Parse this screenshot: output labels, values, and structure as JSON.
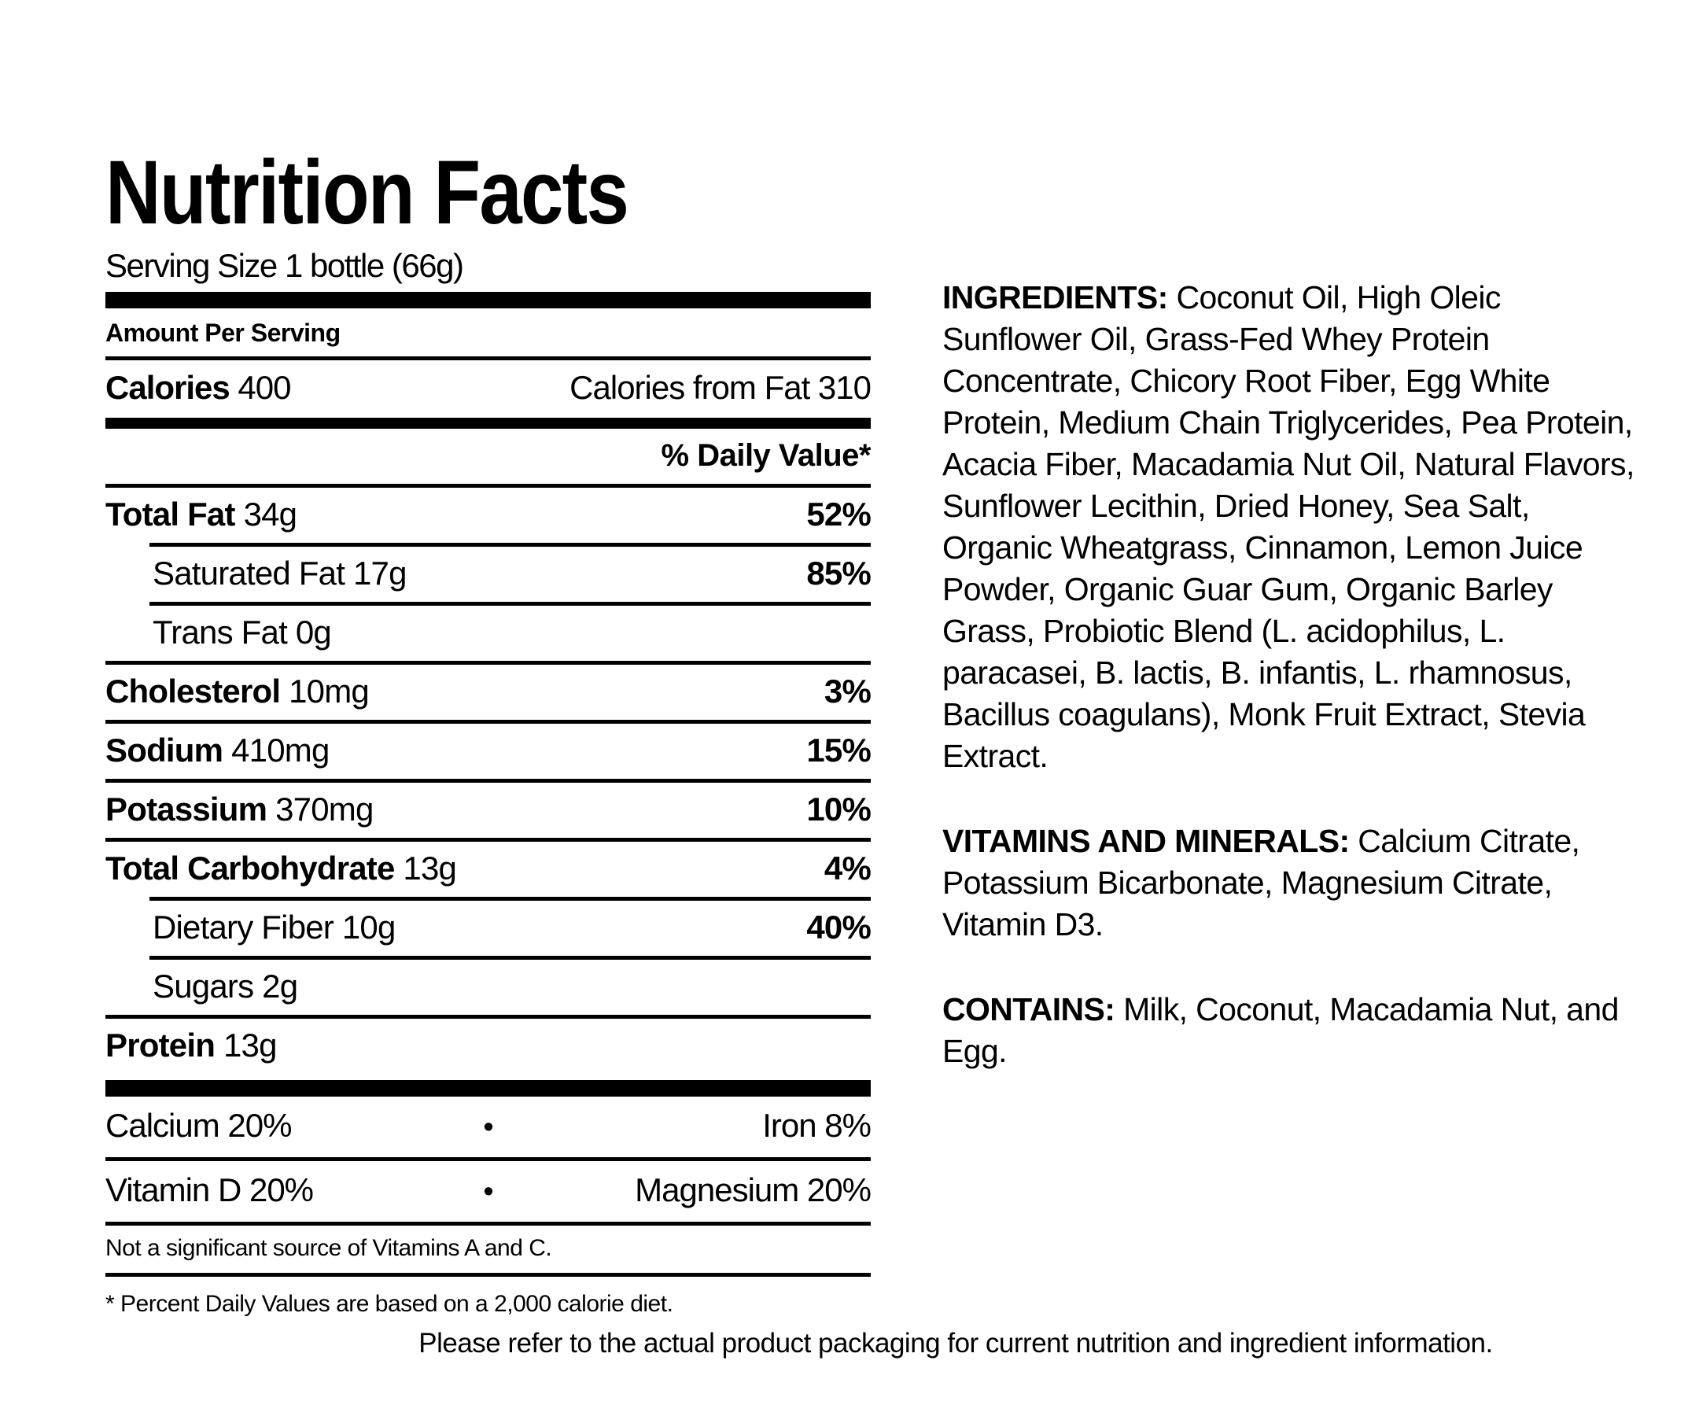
{
  "colors": {
    "text": "#000000",
    "background": "#ffffff"
  },
  "label": {
    "title": "Nutrition Facts",
    "serving_size": "Serving Size 1 bottle (66g)",
    "amount_per_serving": "Amount Per Serving",
    "calories_label": "Calories",
    "calories_value": "400",
    "calories_from_fat": "Calories from Fat 310",
    "daily_value_header": "% Daily Value*",
    "rows": [
      {
        "name": "Total Fat",
        "amount": "34g",
        "dv": "52%",
        "bold": true,
        "indent": false
      },
      {
        "name": "Saturated Fat",
        "amount": "17g",
        "dv": "85%",
        "bold": false,
        "indent": true
      },
      {
        "name": "Trans Fat",
        "amount": "0g",
        "dv": "",
        "bold": false,
        "indent": true
      },
      {
        "name": "Cholesterol",
        "amount": "10mg",
        "dv": "3%",
        "bold": true,
        "indent": false
      },
      {
        "name": "Sodium",
        "amount": "410mg",
        "dv": "15%",
        "bold": true,
        "indent": false
      },
      {
        "name": "Potassium",
        "amount": "370mg",
        "dv": "10%",
        "bold": true,
        "indent": false
      },
      {
        "name": "Total Carbohydrate",
        "amount": "13g",
        "dv": "4%",
        "bold": true,
        "indent": false
      },
      {
        "name": "Dietary Fiber",
        "amount": "10g",
        "dv": "40%",
        "bold": false,
        "indent": true
      },
      {
        "name": "Sugars",
        "amount": "2g",
        "dv": "",
        "bold": false,
        "indent": true
      },
      {
        "name": "Protein",
        "amount": "13g",
        "dv": "",
        "bold": true,
        "indent": false
      }
    ],
    "bullet": "•",
    "micronutrients": [
      {
        "left": "Calcium 20%",
        "right": "Iron 8%"
      },
      {
        "left": "Vitamin D 20%",
        "right": "Magnesium 20%"
      }
    ],
    "not_significant": "Not a significant source of Vitamins A and C.",
    "footnote": "* Percent Daily Values are based on a 2,000 calorie diet."
  },
  "right_column": {
    "ingredients_label": "INGREDIENTS:",
    "ingredients_text": "Coconut Oil, High Oleic Sunflower Oil, Grass-Fed Whey Protein Concentrate, Chicory Root Fiber, Egg White Protein, Medium Chain Triglycerides, Pea Protein, Acacia Fiber, Macadamia Nut Oil, Natural Flavors, Sunflower Lecithin, Dried Honey, Sea Salt, Organic Wheatgrass, Cinnamon, Lemon Juice Powder, Organic Guar Gum, Organic Barley Grass, Probiotic Blend (L. acidophilus, L. paracasei, B. lactis, B. infantis, L. rhamnosus, Bacillus coagulans), Monk Fruit Extract, Stevia Extract.",
    "vitamins_label": "VITAMINS AND MINERALS:",
    "vitamins_text": "Calcium Citrate, Potassium Bicarbonate, Magnesium Citrate, Vitamin D3.",
    "contains_label": "CONTAINS:",
    "contains_text": "Milk, Coconut, Macadamia Nut, and Egg."
  },
  "footer": "Please refer to the actual product packaging for current nutrition and ingredient information."
}
